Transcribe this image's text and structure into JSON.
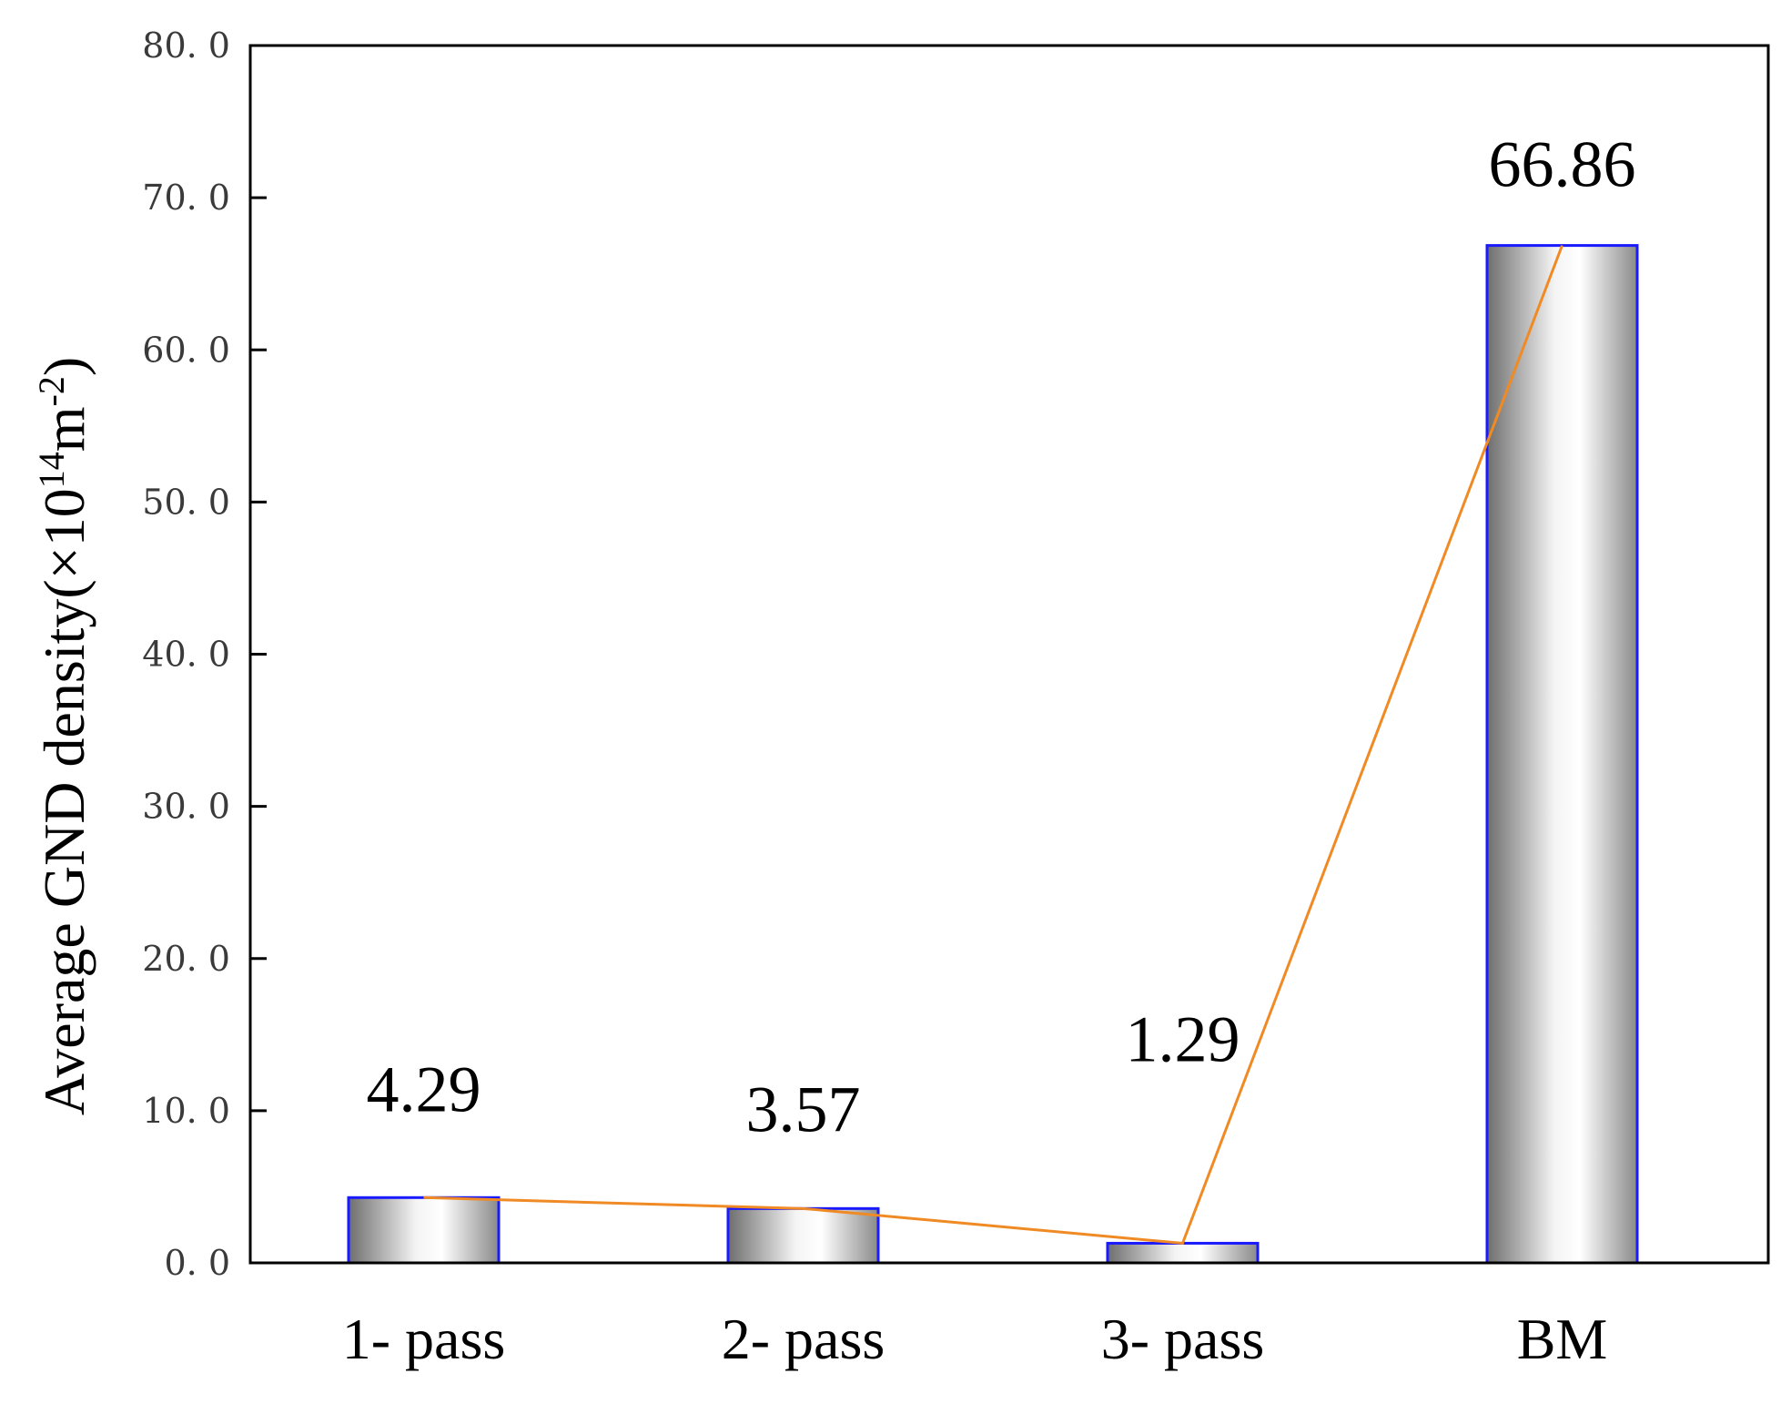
{
  "chart_data": {
    "type": "bar",
    "categories": [
      "1- pass",
      "2- pass",
      "3- pass",
      "BM"
    ],
    "values": [
      4.29,
      3.57,
      1.29,
      66.86
    ],
    "data_labels": [
      "4.29",
      "3.57",
      "1.29",
      "66.86"
    ],
    "ylabel": {
      "prefix": "Average  GND density(×10",
      "sup1": "14",
      "mid": "m",
      "sup2": "-2",
      "suffix": ")"
    },
    "ylim": [
      0,
      80
    ],
    "yticks": [
      "0. 0",
      "10. 0",
      "20. 0",
      "30. 0",
      "40. 0",
      "50. 0",
      "60. 0",
      "70. 0",
      "80. 0"
    ],
    "ytick_values": [
      0,
      10,
      20,
      30,
      40,
      50,
      60,
      70,
      80
    ],
    "overlay_line": true,
    "grid": false,
    "colors": {
      "bar_edge": "#1a1aff",
      "bar_fill_dark": "#6e6e6e",
      "bar_fill_light": "#ffffff",
      "line": "#f08a24",
      "axis": "#000000"
    }
  }
}
